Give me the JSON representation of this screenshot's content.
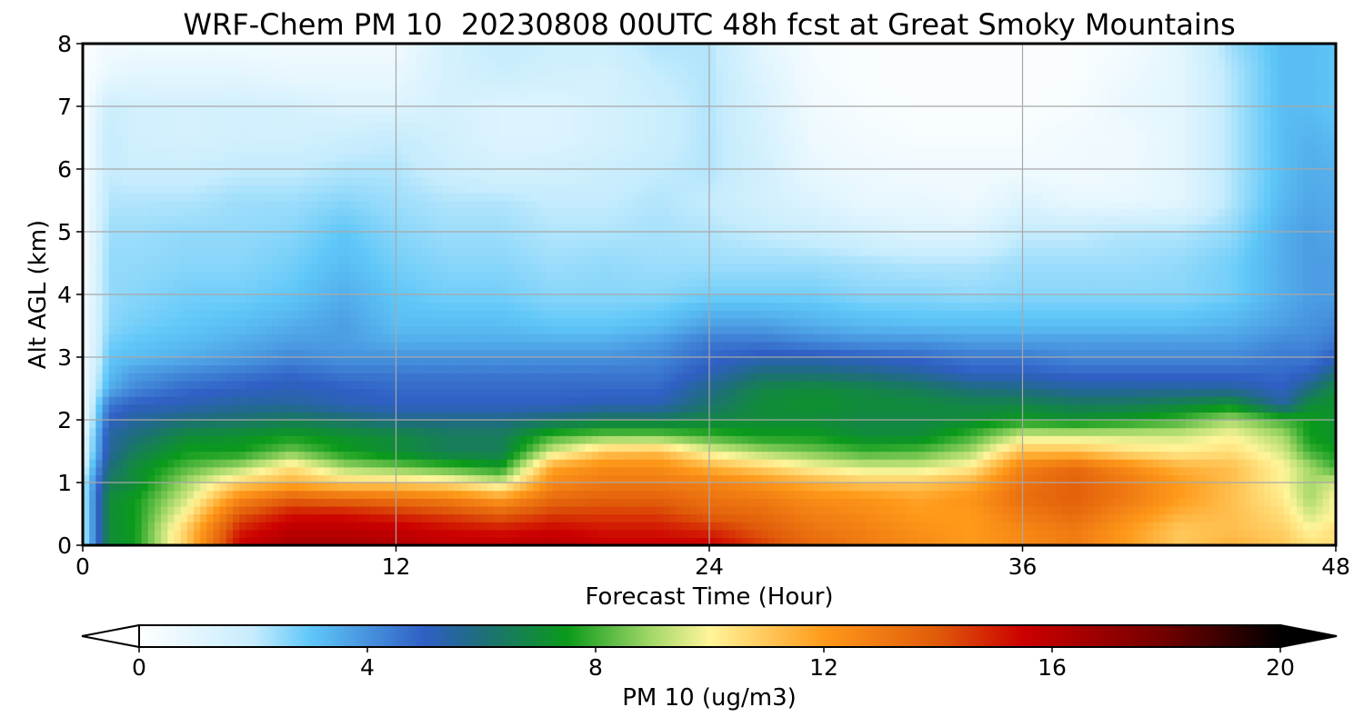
{
  "chart_data": {
    "type": "heatmap",
    "title": "WRF-Chem PM 10  20230808 00UTC 48h fcst at Great Smoky Mountains",
    "xlabel": "Forecast Time (Hour)",
    "ylabel": "Alt AGL (km)",
    "xlim": [
      0,
      48
    ],
    "ylim": [
      0,
      8
    ],
    "xticks": [
      "0",
      "12",
      "24",
      "36",
      "48"
    ],
    "yticks": [
      "0",
      "1",
      "2",
      "3",
      "4",
      "5",
      "6",
      "7",
      "8"
    ],
    "grid": true,
    "colorbar": {
      "label": "PM 10  (ug/m3)",
      "range": [
        0,
        20
      ],
      "ticks": [
        "0",
        "4",
        "8",
        "12",
        "16",
        "20"
      ],
      "extend": "both",
      "stops": [
        {
          "v": 0,
          "c": "#ffffff"
        },
        {
          "v": 2,
          "c": "#c6ecfd"
        },
        {
          "v": 3,
          "c": "#5fc7f8"
        },
        {
          "v": 5,
          "c": "#2f5fc4"
        },
        {
          "v": 6,
          "c": "#1e6e7a"
        },
        {
          "v": 7.5,
          "c": "#0a9a1a"
        },
        {
          "v": 9,
          "c": "#a6d96a"
        },
        {
          "v": 10,
          "c": "#fff59a"
        },
        {
          "v": 12,
          "c": "#ff9a1a"
        },
        {
          "v": 14,
          "c": "#e05a0a"
        },
        {
          "v": 15.5,
          "c": "#cc0000"
        },
        {
          "v": 18,
          "c": "#700000"
        },
        {
          "v": 20,
          "c": "#000000"
        }
      ]
    },
    "x": [
      0,
      1,
      2,
      4,
      6,
      8,
      10,
      12,
      14,
      16,
      18,
      20,
      22,
      24,
      26,
      28,
      30,
      32,
      34,
      36,
      38,
      40,
      42,
      44,
      46,
      47,
      48
    ],
    "y": [
      0,
      0.25,
      0.5,
      0.75,
      1,
      1.25,
      1.5,
      1.75,
      2,
      2.25,
      2.5,
      2.75,
      3,
      3.25,
      3.5,
      4,
      4.5,
      5,
      5.5,
      6,
      6.5,
      7,
      7.5,
      8
    ],
    "values": [
      [
        2.0,
        7.0,
        7.5,
        11.0,
        15.5,
        16.5,
        16.5,
        16.2,
        15.8,
        15.8,
        16.0,
        15.6,
        15.6,
        15.6,
        14.5,
        13.5,
        13.0,
        12.5,
        12.0,
        12.5,
        13.0,
        12.0,
        11.0,
        11.5,
        11.0,
        10.5,
        10.5
      ],
      [
        2.0,
        7.0,
        7.5,
        11.0,
        15.0,
        16.0,
        16.0,
        15.8,
        15.4,
        15.2,
        15.5,
        15.2,
        15.2,
        14.8,
        14.0,
        13.2,
        12.8,
        12.3,
        12.0,
        12.6,
        13.0,
        12.0,
        11.0,
        11.2,
        10.8,
        10.0,
        10.5
      ],
      [
        2.0,
        7.0,
        7.5,
        10.2,
        14.0,
        15.2,
        15.2,
        14.8,
        14.4,
        13.8,
        14.5,
        14.5,
        14.5,
        13.8,
        13.5,
        12.8,
        12.5,
        12.0,
        12.0,
        13.0,
        13.5,
        12.5,
        11.5,
        11.2,
        10.5,
        9.5,
        10.0
      ],
      [
        2.0,
        7.0,
        7.5,
        9.5,
        12.5,
        13.8,
        13.5,
        13.2,
        12.8,
        12.0,
        13.5,
        13.8,
        13.8,
        13.2,
        13.0,
        12.4,
        12.2,
        11.8,
        12.2,
        13.4,
        13.8,
        13.0,
        12.0,
        11.2,
        10.2,
        9.0,
        10.0
      ],
      [
        2.0,
        6.5,
        7.0,
        9.0,
        10.8,
        11.5,
        10.8,
        10.8,
        10.5,
        9.5,
        12.5,
        13.0,
        13.0,
        12.8,
        12.2,
        11.5,
        11.0,
        11.0,
        11.5,
        13.2,
        13.8,
        13.0,
        12.0,
        11.2,
        10.0,
        9.0,
        9.5
      ],
      [
        1.5,
        6.0,
        7.0,
        8.2,
        9.0,
        10.5,
        9.0,
        8.5,
        8.0,
        7.5,
        11.8,
        12.5,
        12.5,
        11.5,
        10.8,
        10.0,
        9.5,
        9.5,
        10.2,
        12.8,
        13.5,
        12.5,
        11.5,
        11.2,
        10.0,
        9.0,
        8.0
      ],
      [
        1.0,
        5.5,
        6.5,
        7.5,
        7.5,
        8.5,
        7.5,
        7.0,
        6.5,
        6.5,
        9.5,
        11.0,
        11.2,
        9.8,
        9.0,
        8.5,
        8.0,
        8.2,
        9.0,
        11.2,
        11.2,
        10.5,
        10.2,
        10.5,
        9.5,
        8.0,
        7.5
      ],
      [
        0.8,
        5.5,
        6.0,
        7.0,
        7.2,
        7.5,
        7.2,
        7.0,
        6.5,
        6.5,
        8.0,
        8.5,
        8.5,
        8.0,
        7.5,
        7.5,
        7.0,
        7.0,
        8.0,
        9.5,
        9.5,
        9.5,
        9.5,
        10.0,
        9.0,
        7.5,
        7.2
      ],
      [
        0.5,
        5.0,
        5.5,
        6.0,
        6.2,
        6.5,
        6.2,
        5.8,
        5.8,
        5.8,
        6.2,
        6.5,
        6.5,
        6.8,
        7.0,
        7.0,
        6.8,
        6.8,
        7.0,
        7.5,
        7.2,
        7.5,
        8.0,
        9.0,
        8.0,
        7.5,
        7.2
      ],
      [
        0.5,
        4.5,
        5.0,
        5.2,
        5.5,
        5.5,
        5.2,
        5.0,
        5.0,
        5.0,
        5.0,
        5.2,
        5.2,
        6.2,
        7.0,
        7.2,
        7.0,
        7.0,
        6.8,
        6.8,
        6.5,
        6.5,
        6.8,
        7.2,
        5.5,
        7.0,
        7.2
      ],
      [
        0.4,
        3.5,
        4.2,
        4.8,
        5.0,
        5.2,
        5.0,
        4.8,
        4.8,
        4.8,
        4.8,
        4.8,
        4.8,
        5.8,
        6.8,
        7.0,
        6.8,
        6.5,
        6.0,
        5.8,
        5.5,
        5.5,
        5.5,
        5.5,
        5.0,
        6.0,
        7.0
      ],
      [
        0.4,
        3.2,
        3.8,
        4.2,
        4.5,
        4.8,
        4.5,
        4.5,
        4.5,
        4.5,
        4.5,
        4.5,
        4.5,
        5.2,
        6.0,
        6.0,
        5.8,
        5.5,
        5.0,
        5.0,
        4.8,
        4.8,
        4.8,
        4.8,
        4.8,
        5.0,
        6.0
      ],
      [
        0.3,
        3.0,
        3.2,
        3.5,
        3.8,
        4.2,
        4.0,
        4.0,
        4.0,
        4.0,
        4.0,
        4.0,
        4.2,
        4.8,
        5.2,
        5.2,
        5.0,
        4.8,
        4.5,
        4.5,
        4.2,
        4.2,
        4.2,
        4.2,
        4.5,
        4.5,
        5.0
      ],
      [
        0.3,
        2.8,
        3.0,
        3.2,
        3.5,
        3.8,
        3.8,
        3.5,
        3.5,
        3.5,
        3.5,
        3.5,
        3.8,
        4.5,
        4.5,
        4.2,
        4.0,
        4.0,
        3.8,
        3.8,
        3.8,
        3.8,
        3.8,
        3.8,
        4.2,
        4.2,
        4.5
      ],
      [
        0.3,
        2.6,
        2.8,
        3.0,
        3.2,
        3.5,
        3.8,
        3.2,
        3.2,
        3.2,
        3.0,
        3.0,
        3.2,
        3.8,
        3.8,
        3.5,
        3.3,
        3.2,
        3.2,
        3.2,
        3.2,
        3.2,
        3.2,
        3.4,
        3.8,
        4.0,
        4.2
      ],
      [
        0.3,
        2.5,
        2.6,
        2.8,
        2.8,
        3.0,
        3.5,
        3.0,
        2.8,
        2.8,
        2.6,
        2.6,
        2.6,
        2.8,
        2.8,
        2.8,
        2.6,
        2.6,
        2.5,
        2.6,
        2.6,
        2.6,
        2.6,
        2.8,
        3.5,
        3.8,
        3.8
      ],
      [
        0.2,
        2.5,
        2.5,
        2.6,
        2.6,
        2.8,
        3.2,
        2.8,
        2.6,
        2.6,
        2.4,
        2.5,
        2.4,
        2.4,
        2.4,
        2.4,
        2.3,
        2.2,
        2.2,
        2.4,
        2.4,
        2.4,
        2.5,
        2.8,
        3.5,
        3.8,
        3.8
      ],
      [
        0.2,
        2.4,
        2.4,
        2.5,
        2.5,
        2.6,
        3.0,
        2.6,
        2.4,
        2.4,
        2.2,
        2.2,
        2.3,
        2.2,
        2.0,
        1.8,
        1.5,
        1.2,
        1.2,
        2.0,
        2.0,
        2.2,
        2.2,
        2.5,
        3.5,
        3.8,
        3.6
      ],
      [
        0.2,
        2.2,
        2.2,
        2.2,
        2.4,
        2.4,
        2.6,
        2.4,
        2.2,
        2.2,
        2.0,
        2.0,
        2.2,
        2.0,
        1.6,
        1.2,
        0.8,
        0.8,
        0.6,
        1.2,
        0.8,
        0.8,
        1.0,
        2.2,
        3.3,
        3.6,
        3.5
      ],
      [
        0.2,
        2.0,
        1.8,
        1.8,
        2.0,
        2.0,
        2.2,
        2.2,
        1.8,
        1.5,
        1.6,
        1.8,
        2.0,
        2.2,
        1.6,
        0.8,
        0.6,
        0.5,
        0.5,
        0.5,
        0.5,
        0.6,
        1.0,
        2.2,
        3.2,
        3.5,
        3.4
      ],
      [
        0.2,
        2.0,
        1.6,
        1.5,
        1.6,
        1.6,
        1.8,
        2.0,
        1.6,
        1.2,
        1.2,
        1.5,
        1.8,
        2.2,
        1.5,
        0.6,
        0.4,
        0.3,
        0.3,
        0.3,
        0.5,
        0.5,
        1.0,
        2.2,
        3.2,
        3.4,
        3.2
      ],
      [
        0.1,
        1.8,
        1.6,
        1.5,
        1.6,
        1.5,
        1.2,
        1.2,
        1.5,
        1.2,
        1.2,
        1.5,
        1.8,
        2.2,
        1.4,
        0.5,
        0.3,
        0.2,
        0.2,
        0.2,
        0.3,
        0.8,
        1.0,
        2.2,
        3.2,
        3.2,
        3.0
      ],
      [
        0.1,
        0.8,
        1.0,
        1.0,
        1.0,
        0.8,
        0.8,
        0.8,
        1.5,
        1.8,
        1.6,
        1.5,
        2.0,
        2.2,
        1.2,
        0.4,
        0.2,
        0.2,
        0.2,
        0.2,
        0.2,
        0.6,
        1.0,
        2.2,
        3.2,
        3.2,
        3.0
      ],
      [
        0.1,
        0.5,
        0.5,
        0.5,
        0.5,
        0.5,
        0.5,
        0.5,
        1.5,
        2.0,
        1.8,
        1.8,
        2.2,
        2.2,
        1.0,
        0.3,
        0.2,
        0.2,
        0.2,
        0.2,
        0.2,
        0.4,
        1.0,
        2.4,
        3.2,
        3.2,
        3.0
      ]
    ]
  }
}
